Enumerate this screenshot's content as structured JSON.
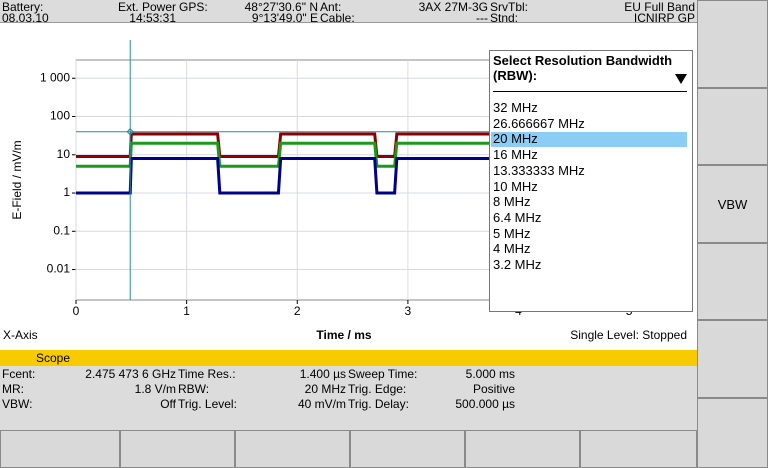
{
  "status_bar": {
    "battery_label": "Battery:",
    "date": "08.03.10",
    "power_label": "Ext. Power",
    "time": "14:53:31",
    "gps_label": "GPS:",
    "lat": "48°27'30.6\" N",
    "lon": "9°13'49.0\" E",
    "ant_label": "Ant:",
    "ant": "3AX 27M-3G",
    "cable_label": "Cable:",
    "cable": "---",
    "srvtbl_label": "SrvTbl:",
    "srvtbl": "EU Full Band",
    "stnd_label": "Stnd:",
    "stnd": "ICNIRP GP"
  },
  "chart_data": {
    "type": "line",
    "y_label": "E-Field / mV/m",
    "x_label": "Time / ms",
    "x_axis_label": "X-Axis",
    "status": "Single Level: Stopped",
    "log_y": true,
    "grid": true,
    "xlim": [
      0,
      5.55
    ],
    "xticks": [
      0,
      1,
      2,
      3,
      4,
      5
    ],
    "ylim": [
      0.0016,
      3000
    ],
    "yticks": [
      {
        "value": 1000,
        "label": "1 000"
      },
      100,
      10,
      1,
      0.1,
      0.01
    ],
    "x": [
      0,
      0.49,
      0.5,
      1.28,
      1.3,
      1.83,
      1.85,
      2.7,
      2.72,
      2.88,
      2.9,
      4.0
    ],
    "series": [
      {
        "color": "#8b0000",
        "values": [
          9,
          9,
          35,
          35,
          9,
          9,
          35,
          35,
          9,
          9,
          35,
          35
        ]
      },
      {
        "color": "#1a9a1a",
        "values": [
          5,
          5,
          20,
          20,
          5,
          5,
          20,
          20,
          5,
          5,
          20,
          20
        ]
      },
      {
        "color": "#00008b",
        "values": [
          1,
          1,
          8,
          8,
          1,
          1,
          8,
          8,
          1,
          1,
          8,
          8
        ]
      }
    ],
    "cursor": {
      "x": 0.49,
      "y": 40,
      "color": "#2a8a9a"
    }
  },
  "dropdown": {
    "title": "Select Resolution Bandwidth (RBW):",
    "selected": 2,
    "options": [
      "32 MHz",
      "26.666667 MHz",
      "20 MHz",
      "16 MHz",
      "13.333333 MHz",
      "10 MHz",
      "8 MHz",
      "6.4 MHz",
      "5 MHz",
      "4 MHz",
      "3.2 MHz"
    ]
  },
  "mode_bar": "Scope",
  "info": [
    [
      "Fcent:",
      "2.475 473 6 GHz",
      "Time Res.:",
      "1.400 µs",
      "Sweep Time:",
      "5.000 ms"
    ],
    [
      "MR:",
      "1.8 V/m",
      "RBW:",
      "20 MHz",
      "Trig. Edge:",
      "Positive"
    ],
    [
      "VBW:",
      "Off",
      "Trig. Level:",
      "40 mV/m",
      "Trig. Delay:",
      "500.000 µs"
    ]
  ],
  "softkeys": {
    "vbw": "VBW"
  }
}
